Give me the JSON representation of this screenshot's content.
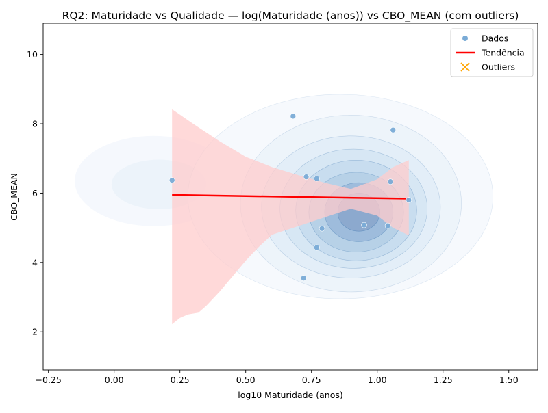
{
  "chart_data": {
    "type": "scatter",
    "title": "RQ2: Maturidade vs Qualidade — log(Maturidade (anos)) vs CBO_MEAN (com outliers)",
    "xlabel": "log10 Maturidade (anos)",
    "ylabel": "CBO_MEAN",
    "xlim": [
      -0.27,
      1.61
    ],
    "ylim": [
      0.9,
      10.9
    ],
    "x_ticks": [
      -0.25,
      0.0,
      0.25,
      0.5,
      0.75,
      1.0,
      1.25,
      1.5
    ],
    "x_tick_labels": [
      "−0.25",
      "0.00",
      "0.25",
      "0.50",
      "0.75",
      "1.00",
      "1.25",
      "1.50"
    ],
    "y_ticks": [
      2,
      4,
      6,
      8,
      10
    ],
    "y_tick_labels": [
      "2",
      "4",
      "6",
      "8",
      "10"
    ],
    "grid": false,
    "legend_position": "top-right",
    "legend": [
      {
        "label": "Dados",
        "marker": "dot",
        "color": "#7aabd6"
      },
      {
        "label": "Tendência",
        "marker": "line",
        "color": "#ff0000"
      },
      {
        "label": "Outliers",
        "marker": "x",
        "color": "#ffa500"
      }
    ],
    "series": [
      {
        "name": "Dados",
        "color": "#7aabd6",
        "points": [
          {
            "x": 0.22,
            "y": 6.37
          },
          {
            "x": 0.68,
            "y": 8.22
          },
          {
            "x": 1.06,
            "y": 7.82
          },
          {
            "x": 0.73,
            "y": 6.47
          },
          {
            "x": 0.77,
            "y": 6.42
          },
          {
            "x": 1.05,
            "y": 6.33
          },
          {
            "x": 1.12,
            "y": 5.8
          },
          {
            "x": 0.95,
            "y": 5.08
          },
          {
            "x": 1.04,
            "y": 5.06
          },
          {
            "x": 0.79,
            "y": 4.98
          },
          {
            "x": 0.77,
            "y": 4.43
          },
          {
            "x": 0.72,
            "y": 3.55
          }
        ]
      },
      {
        "name": "Tendência",
        "color": "#ff0000",
        "line": [
          {
            "x": 0.22,
            "y": 5.95
          },
          {
            "x": 1.12,
            "y": 5.84
          }
        ],
        "ci_color": "#ffcccc",
        "ci_upper": [
          {
            "x": 0.22,
            "y": 8.42
          },
          {
            "x": 0.3,
            "y": 8.0
          },
          {
            "x": 0.4,
            "y": 7.5
          },
          {
            "x": 0.5,
            "y": 7.05
          },
          {
            "x": 0.6,
            "y": 6.75
          },
          {
            "x": 0.7,
            "y": 6.52
          },
          {
            "x": 0.8,
            "y": 6.3
          },
          {
            "x": 0.9,
            "y": 6.12
          },
          {
            "x": 1.0,
            "y": 6.4
          },
          {
            "x": 1.06,
            "y": 6.75
          },
          {
            "x": 1.12,
            "y": 6.95
          }
        ],
        "ci_lower": [
          {
            "x": 0.22,
            "y": 2.22
          },
          {
            "x": 0.25,
            "y": 2.4
          },
          {
            "x": 0.28,
            "y": 2.5
          },
          {
            "x": 0.32,
            "y": 2.55
          },
          {
            "x": 0.35,
            "y": 2.75
          },
          {
            "x": 0.4,
            "y": 3.15
          },
          {
            "x": 0.45,
            "y": 3.6
          },
          {
            "x": 0.5,
            "y": 4.05
          },
          {
            "x": 0.55,
            "y": 4.45
          },
          {
            "x": 0.6,
            "y": 4.8
          },
          {
            "x": 0.7,
            "y": 5.05
          },
          {
            "x": 0.8,
            "y": 5.3
          },
          {
            "x": 0.9,
            "y": 5.55
          },
          {
            "x": 1.0,
            "y": 5.35
          },
          {
            "x": 1.06,
            "y": 5.0
          },
          {
            "x": 1.12,
            "y": 4.78
          }
        ]
      }
    ],
    "density_contours": {
      "color": "#4a7fb5",
      "fills": [
        "#f5f8fd",
        "#ecf3fa",
        "#e1edf7",
        "#d5e6f3",
        "#c7dcee",
        "#b5cfe6",
        "#9bb9da",
        "#8aa6cc"
      ],
      "levels": [
        {
          "cx": 0.86,
          "cy": 5.9,
          "rx": 0.58,
          "ry": 2.95,
          "tilt": 0
        },
        {
          "cx": 0.9,
          "cy": 5.7,
          "rx": 0.42,
          "ry": 2.55,
          "tilt": 0
        },
        {
          "cx": 0.9,
          "cy": 5.6,
          "rx": 0.34,
          "ry": 2.05,
          "tilt": 0
        },
        {
          "cx": 0.91,
          "cy": 5.55,
          "rx": 0.28,
          "ry": 1.72,
          "tilt": 0
        },
        {
          "cx": 0.92,
          "cy": 5.5,
          "rx": 0.23,
          "ry": 1.45,
          "tilt": 0
        },
        {
          "cx": 0.92,
          "cy": 5.45,
          "rx": 0.18,
          "ry": 1.15,
          "tilt": 0
        },
        {
          "cx": 0.93,
          "cy": 5.45,
          "rx": 0.13,
          "ry": 0.85,
          "tilt": 0
        },
        {
          "cx": 0.93,
          "cy": 5.45,
          "rx": 0.08,
          "ry": 0.55,
          "tilt": 0
        }
      ],
      "side_lobe": {
        "cx": 0.15,
        "cy": 6.35,
        "rx": 0.3,
        "ry": 1.3
      }
    }
  }
}
